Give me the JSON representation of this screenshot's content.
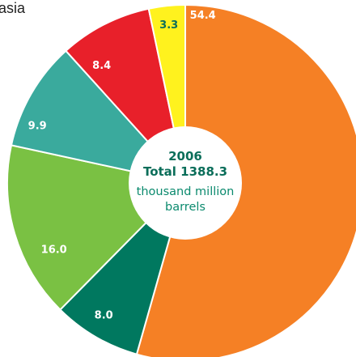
{
  "header": {
    "partial_label": "asia"
  },
  "chart_data": {
    "type": "pie",
    "donut": true,
    "title": "",
    "center": {
      "year": "2006",
      "total": "Total 1388.3",
      "unit_line1": "thousand million",
      "unit_line2": "barrels"
    },
    "slices": [
      {
        "value": 54.4,
        "label": "54.4",
        "color": "#f58025",
        "label_color": "#ffffff"
      },
      {
        "value": 8.0,
        "label": "8.0",
        "color": "#00785f",
        "label_color": "#ffffff"
      },
      {
        "value": 16.0,
        "label": "16.0",
        "color": "#7ac143",
        "label_color": "#ffffff"
      },
      {
        "value": 9.9,
        "label": "9.9",
        "color": "#3aaa9d",
        "label_color": "#ffffff"
      },
      {
        "value": 8.4,
        "label": "8.4",
        "color": "#e8202a",
        "label_color": "#ffffff"
      },
      {
        "value": 3.3,
        "label": "3.3",
        "color": "#fff21e",
        "label_color": "#0b6e5a"
      }
    ],
    "legend": "none",
    "grid": false
  }
}
